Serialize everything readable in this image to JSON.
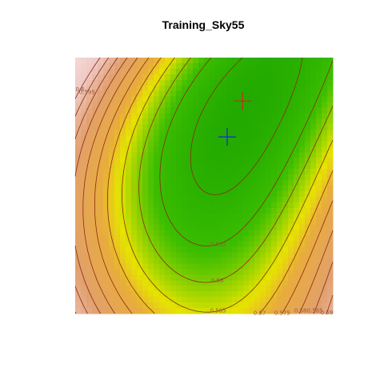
{
  "chart_data": {
    "type": "heatmap",
    "title": "Training_Sky55",
    "xlabel": "",
    "ylabel": "",
    "axes_shown": false,
    "grid": false,
    "legend": "none",
    "color_scale": [
      "#2fb400",
      "#e5e500",
      "#e7a968",
      "#f1c9c5",
      "#f5e1dd"
    ],
    "contour_levels": [
      0.55,
      0.555,
      0.56,
      0.565,
      0.57,
      0.575,
      0.58,
      0.585,
      0.59,
      0.595,
      0.6
    ],
    "contour_labels": [
      {
        "text": "0.555"
      },
      {
        "text": "0.56"
      },
      {
        "text": "0.565"
      },
      {
        "text": "0.57"
      },
      {
        "text": "0.575"
      },
      {
        "text": "0.58"
      },
      {
        "text": "0.585"
      },
      {
        "text": "0.59"
      },
      {
        "text": "0.595"
      },
      {
        "text": "0.6"
      }
    ],
    "markers": [
      {
        "name": "minimum",
        "color": "#cc2b1a"
      },
      {
        "name": "estimate",
        "color": "#1a2fd0"
      }
    ]
  }
}
